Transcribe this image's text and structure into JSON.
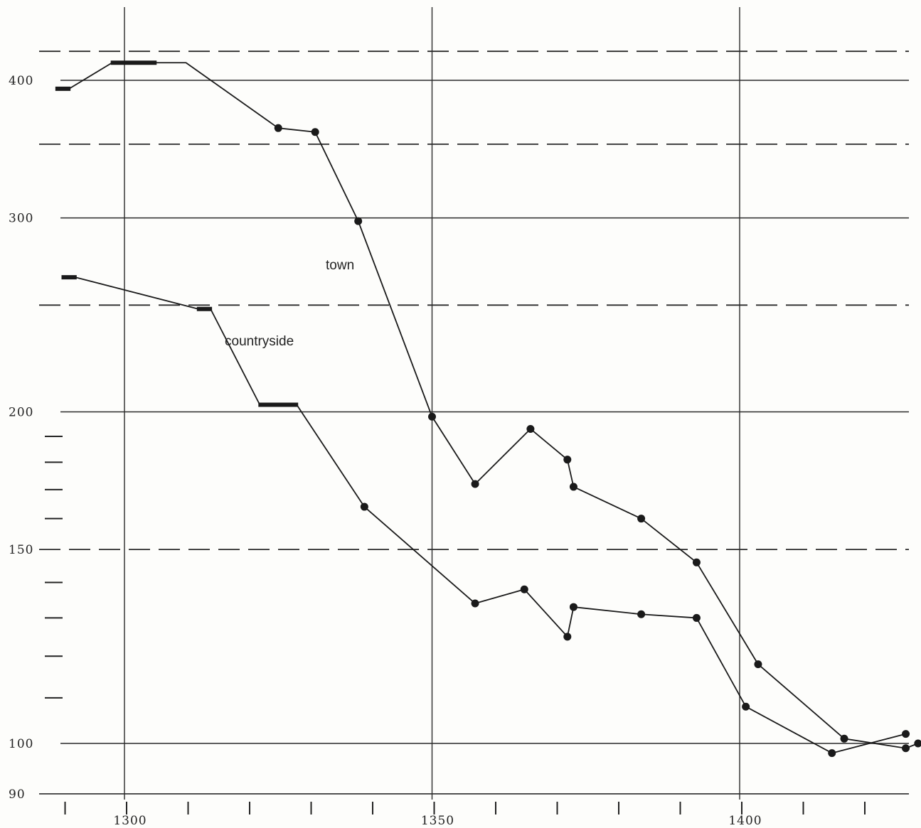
{
  "chart_data": {
    "type": "line",
    "title": "",
    "xlabel": "",
    "ylabel": "",
    "y_scale": "log",
    "xlim": [
      1290,
      1430
    ],
    "ylim": [
      90,
      430
    ],
    "y_tick_labels": [
      {
        "value": 400,
        "label": "400"
      },
      {
        "value": 300,
        "label": "300"
      },
      {
        "value": 200,
        "label": "200"
      },
      {
        "value": 150,
        "label": "150"
      },
      {
        "value": 100,
        "label": "100"
      },
      {
        "value": 90,
        "label": "90"
      }
    ],
    "x_tick_labels": [
      {
        "value": 1300,
        "label": "1300"
      },
      {
        "value": 1350,
        "label": "1350"
      },
      {
        "value": 1400,
        "label": "1400"
      }
    ],
    "x_minor_ticks": [
      1290,
      1300,
      1310,
      1320,
      1330,
      1340,
      1350,
      1360,
      1370,
      1380,
      1390,
      1400,
      1410,
      1420
    ],
    "y_minor_ticks": [
      190,
      180,
      170,
      160,
      140,
      130,
      120,
      110
    ],
    "solid_gridlines_y": [
      400,
      300,
      200,
      100,
      90
    ],
    "dashed_gridlines_y": [
      425,
      350,
      250,
      150
    ],
    "vertical_gridlines_x": [
      1300,
      1350,
      1400
    ],
    "grid": true,
    "series": [
      {
        "name": "town",
        "color": "#1a1a1a",
        "points": [
          {
            "x": 1289,
            "y": 393,
            "marker": "bar",
            "x_end": 1291
          },
          {
            "x": 1298,
            "y": 415,
            "marker": "bar",
            "x_end": 1305
          },
          {
            "x": 1310,
            "y": 415,
            "marker": "none"
          },
          {
            "x": 1325,
            "y": 362,
            "marker": "dot"
          },
          {
            "x": 1331,
            "y": 359,
            "marker": "dot"
          },
          {
            "x": 1338,
            "y": 298,
            "marker": "dot"
          },
          {
            "x": 1350,
            "y": 198,
            "marker": "dot"
          },
          {
            "x": 1357,
            "y": 172,
            "marker": "dot"
          },
          {
            "x": 1366,
            "y": 193,
            "marker": "dot"
          },
          {
            "x": 1372,
            "y": 181,
            "marker": "dot"
          },
          {
            "x": 1373,
            "y": 171,
            "marker": "dot"
          },
          {
            "x": 1384,
            "y": 160,
            "marker": "dot"
          },
          {
            "x": 1393,
            "y": 146,
            "marker": "dot"
          },
          {
            "x": 1403,
            "y": 118,
            "marker": "dot"
          },
          {
            "x": 1417,
            "y": 101,
            "marker": "dot"
          },
          {
            "x": 1427,
            "y": 99,
            "marker": "dot"
          },
          {
            "x": 1429,
            "y": 100,
            "marker": "dot"
          }
        ]
      },
      {
        "name": "countryside",
        "color": "#1a1a1a",
        "points": [
          {
            "x": 1290,
            "y": 265,
            "marker": "bar",
            "x_end": 1292
          },
          {
            "x": 1312,
            "y": 248,
            "marker": "bar",
            "x_end": 1314
          },
          {
            "x": 1322,
            "y": 203,
            "marker": "bar",
            "x_end": 1328
          },
          {
            "x": 1339,
            "y": 164,
            "marker": "dot"
          },
          {
            "x": 1357,
            "y": 134,
            "marker": "dot"
          },
          {
            "x": 1365,
            "y": 138,
            "marker": "dot"
          },
          {
            "x": 1372,
            "y": 125,
            "marker": "dot"
          },
          {
            "x": 1373,
            "y": 133,
            "marker": "dot"
          },
          {
            "x": 1384,
            "y": 131,
            "marker": "dot"
          },
          {
            "x": 1393,
            "y": 130,
            "marker": "dot"
          },
          {
            "x": 1401,
            "y": 108,
            "marker": "dot"
          },
          {
            "x": 1415,
            "y": 98,
            "marker": "dot"
          },
          {
            "x": 1427,
            "y": 102,
            "marker": "dot"
          }
        ]
      }
    ],
    "annotations": [
      {
        "text": "town",
        "series": "town"
      },
      {
        "text": "countryside",
        "series": "countryside"
      }
    ]
  }
}
